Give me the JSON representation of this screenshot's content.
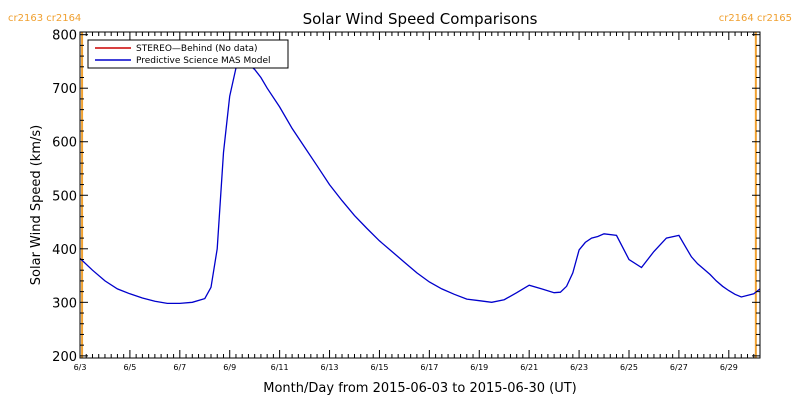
{
  "chart_data": {
    "type": "line",
    "title": "Solar Wind Speed Comparisons",
    "xlabel": "Month/Day from 2015-06-03 to 2015-06-30 (UT)",
    "ylabel": "Solar Wind Speed (km/s)",
    "xlim": [
      "2015-06-03T00:00",
      "2015-06-30T06:00"
    ],
    "ylim": [
      196,
      805
    ],
    "x_ticks": [
      "6/3",
      "6/5",
      "6/7",
      "6/9",
      "6/11",
      "6/13",
      "6/15",
      "6/17",
      "6/19",
      "6/21",
      "6/23",
      "6/25",
      "6/27",
      "6/29"
    ],
    "y_ticks": [
      200,
      300,
      400,
      500,
      600,
      700,
      800
    ],
    "grid": false,
    "legend_position": "top-left",
    "carrington_markers": [
      {
        "date": "2015-06-03T02:00",
        "labels": [
          "cr2163",
          "cr2164"
        ],
        "color": "#f0a030"
      },
      {
        "date": "2015-06-30T02:00",
        "labels": [
          "cr2164",
          "cr2165"
        ],
        "color": "#f0a030"
      }
    ],
    "series": [
      {
        "name": "STEREO—Behind (No data)",
        "color": "#cc0000",
        "values": []
      },
      {
        "name": "Predictive Science MAS Model",
        "color": "#0000cc",
        "x": [
          "2015-06-03T00:00",
          "2015-06-03T12:00",
          "2015-06-04T00:00",
          "2015-06-04T12:00",
          "2015-06-05T00:00",
          "2015-06-05T12:00",
          "2015-06-06T00:00",
          "2015-06-06T12:00",
          "2015-06-07T00:00",
          "2015-06-07T12:00",
          "2015-06-08T00:00",
          "2015-06-08T06:00",
          "2015-06-08T12:00",
          "2015-06-08T18:00",
          "2015-06-09T00:00",
          "2015-06-09T06:00",
          "2015-06-09T12:00",
          "2015-06-09T18:00",
          "2015-06-10T00:00",
          "2015-06-10T06:00",
          "2015-06-10T12:00",
          "2015-06-11T00:00",
          "2015-06-11T12:00",
          "2015-06-12T00:00",
          "2015-06-12T12:00",
          "2015-06-13T00:00",
          "2015-06-13T12:00",
          "2015-06-14T00:00",
          "2015-06-14T12:00",
          "2015-06-15T00:00",
          "2015-06-15T12:00",
          "2015-06-16T00:00",
          "2015-06-16T12:00",
          "2015-06-17T00:00",
          "2015-06-17T12:00",
          "2015-06-18T00:00",
          "2015-06-18T12:00",
          "2015-06-19T00:00",
          "2015-06-19T12:00",
          "2015-06-20T00:00",
          "2015-06-20T12:00",
          "2015-06-21T00:00",
          "2015-06-21T12:00",
          "2015-06-22T00:00",
          "2015-06-22T06:00",
          "2015-06-22T12:00",
          "2015-06-22T18:00",
          "2015-06-23T00:00",
          "2015-06-23T06:00",
          "2015-06-23T12:00",
          "2015-06-23T18:00",
          "2015-06-24T00:00",
          "2015-06-24T12:00",
          "2015-06-25T00:00",
          "2015-06-25T12:00",
          "2015-06-26T00:00",
          "2015-06-26T12:00",
          "2015-06-27T00:00",
          "2015-06-27T06:00",
          "2015-06-27T12:00",
          "2015-06-27T18:00",
          "2015-06-28T00:00",
          "2015-06-28T06:00",
          "2015-06-28T12:00",
          "2015-06-28T18:00",
          "2015-06-29T00:00",
          "2015-06-29T06:00",
          "2015-06-29T12:00",
          "2015-06-30T00:00",
          "2015-06-30T06:00"
        ],
        "values": [
          382,
          360,
          340,
          325,
          316,
          308,
          302,
          298,
          298,
          300,
          307,
          328,
          400,
          580,
          685,
          738,
          752,
          745,
          735,
          720,
          700,
          665,
          625,
          590,
          555,
          520,
          490,
          462,
          438,
          415,
          395,
          375,
          355,
          338,
          325,
          315,
          306,
          303,
          300,
          305,
          318,
          332,
          325,
          318,
          319,
          330,
          355,
          398,
          412,
          420,
          423,
          428,
          425,
          380,
          365,
          395,
          420,
          425,
          405,
          385,
          372,
          362,
          352,
          340,
          330,
          322,
          315,
          310,
          316,
          325
        ]
      }
    ]
  }
}
